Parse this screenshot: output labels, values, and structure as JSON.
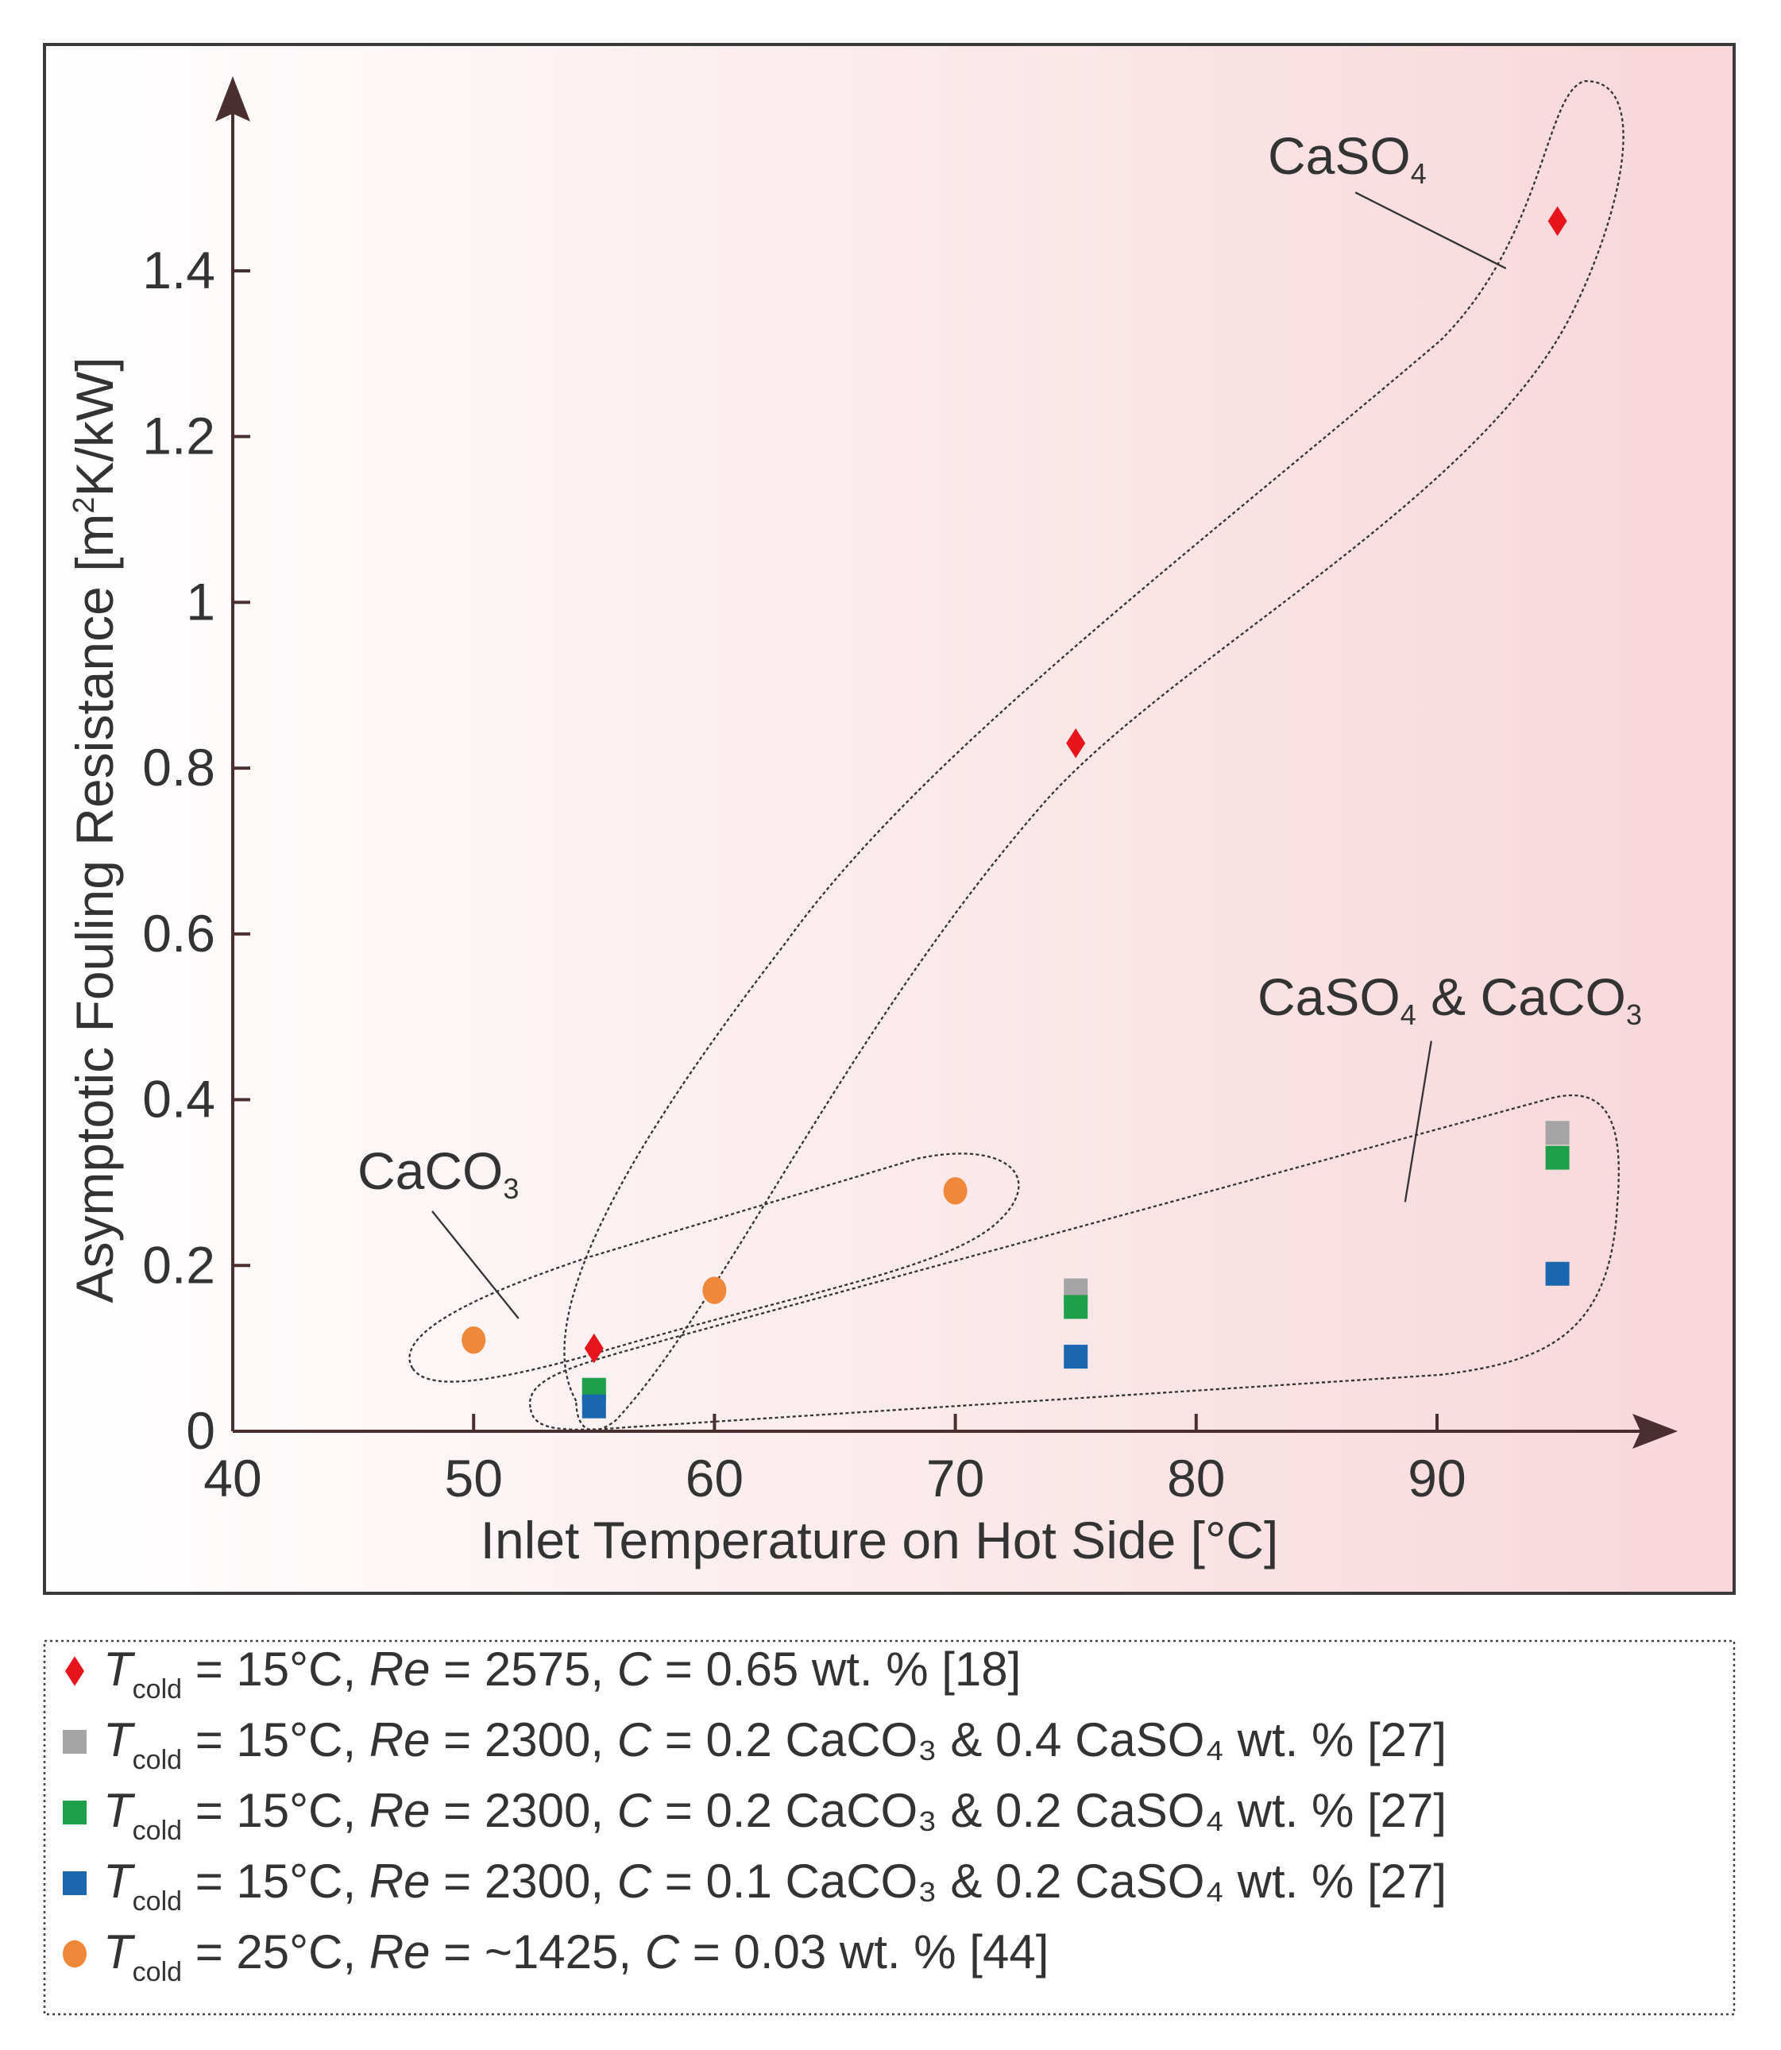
{
  "chart_data": {
    "type": "scatter",
    "title": "",
    "xlabel": "Inlet Temperature on Hot Side [°C]",
    "ylabel_parts": {
      "pre": "Asymptotic Fouling Resistance [m",
      "sup": "2",
      "post": "K/kW]"
    },
    "xlim": [
      40,
      98
    ],
    "ylim": [
      0,
      1.55
    ],
    "xticks": [
      40,
      50,
      60,
      70,
      80,
      90
    ],
    "yticks": [
      0,
      0.2,
      0.4,
      0.6,
      0.8,
      1,
      1.2,
      1.4
    ],
    "ytick_labels": [
      "0",
      "0.2",
      "0.4",
      "0.6",
      "0.8",
      "1",
      "1.2",
      "1.4"
    ],
    "grid": false,
    "legend_placement": "below",
    "series": [
      {
        "name": "Tcold = 15°C, Re = 2575, C = 0.65 wt. % [18]",
        "marker": "diamond",
        "color": "#e8141b",
        "legend": {
          "T": "T",
          "sub": "cold",
          "a": " = 15°C, ",
          "Re": "Re",
          "b": " = 2575, ",
          "C": "C",
          "c": " = 0.65 wt. % [18]"
        },
        "x": [
          55,
          75,
          95
        ],
        "y": [
          0.1,
          0.83,
          1.46
        ]
      },
      {
        "name": "Tcold = 15°C, Re = 2300, C = 0.2 CaCO3 & 0.4 CaSO4 wt. % [27]",
        "marker": "square",
        "color": "#a5a5a5",
        "legend": {
          "T": "T",
          "sub": "cold",
          "a": " = 15°C, ",
          "Re": "Re",
          "b": " = 2300, ",
          "C": "C",
          "c": " = 0.2 CaCO₃ & 0.4 CaSO₄ wt. % [27]"
        },
        "x": [
          55,
          75,
          95
        ],
        "y": [
          0.05,
          0.17,
          0.36
        ]
      },
      {
        "name": "Tcold = 15°C, Re = 2300, C = 0.2 CaCO3 & 0.2 CaSO4 wt. % [27]",
        "marker": "square",
        "color": "#1ea04a",
        "legend": {
          "T": "T",
          "sub": "cold",
          "a": " = 15°C, ",
          "Re": "Re",
          "b": " = 2300, ",
          "C": "C",
          "c": " = 0.2 CaCO₃ & 0.2 CaSO₄ wt. % [27]"
        },
        "x": [
          55,
          75,
          95
        ],
        "y": [
          0.05,
          0.15,
          0.33
        ]
      },
      {
        "name": "Tcold = 15°C, Re = 2300, C = 0.1 CaCO3 & 0.2 CaSO4 wt. % [27]",
        "marker": "square",
        "color": "#1a67b0",
        "legend": {
          "T": "T",
          "sub": "cold",
          "a": " = 15°C, ",
          "Re": "Re",
          "b": " = 2300, ",
          "C": "C",
          "c": " = 0.1 CaCO₃ & 0.2 CaSO₄ wt. % [27]"
        },
        "x": [
          55,
          75,
          95
        ],
        "y": [
          0.03,
          0.09,
          0.19
        ]
      },
      {
        "name": "Tcold = 25°C, Re = ~1425, C = 0.03 wt. % [44]",
        "marker": "circle",
        "color": "#f0873a",
        "legend": {
          "T": "T",
          "sub": "cold",
          "a": " = 25°C, ",
          "Re": "Re",
          "b": " = ~1425, ",
          "C": "C",
          "c": " = 0.03 wt. % [44]"
        },
        "x": [
          50,
          60,
          70
        ],
        "y": [
          0.11,
          0.17,
          0.29
        ]
      }
    ],
    "annotations": [
      {
        "base": "CaSO",
        "sub": "4",
        "rest": ""
      },
      {
        "base": "CaSO",
        "sub": "4",
        "rest": " & CaCO",
        "sub2": "3"
      },
      {
        "base": "CaCO",
        "sub": "3",
        "rest": ""
      }
    ]
  }
}
